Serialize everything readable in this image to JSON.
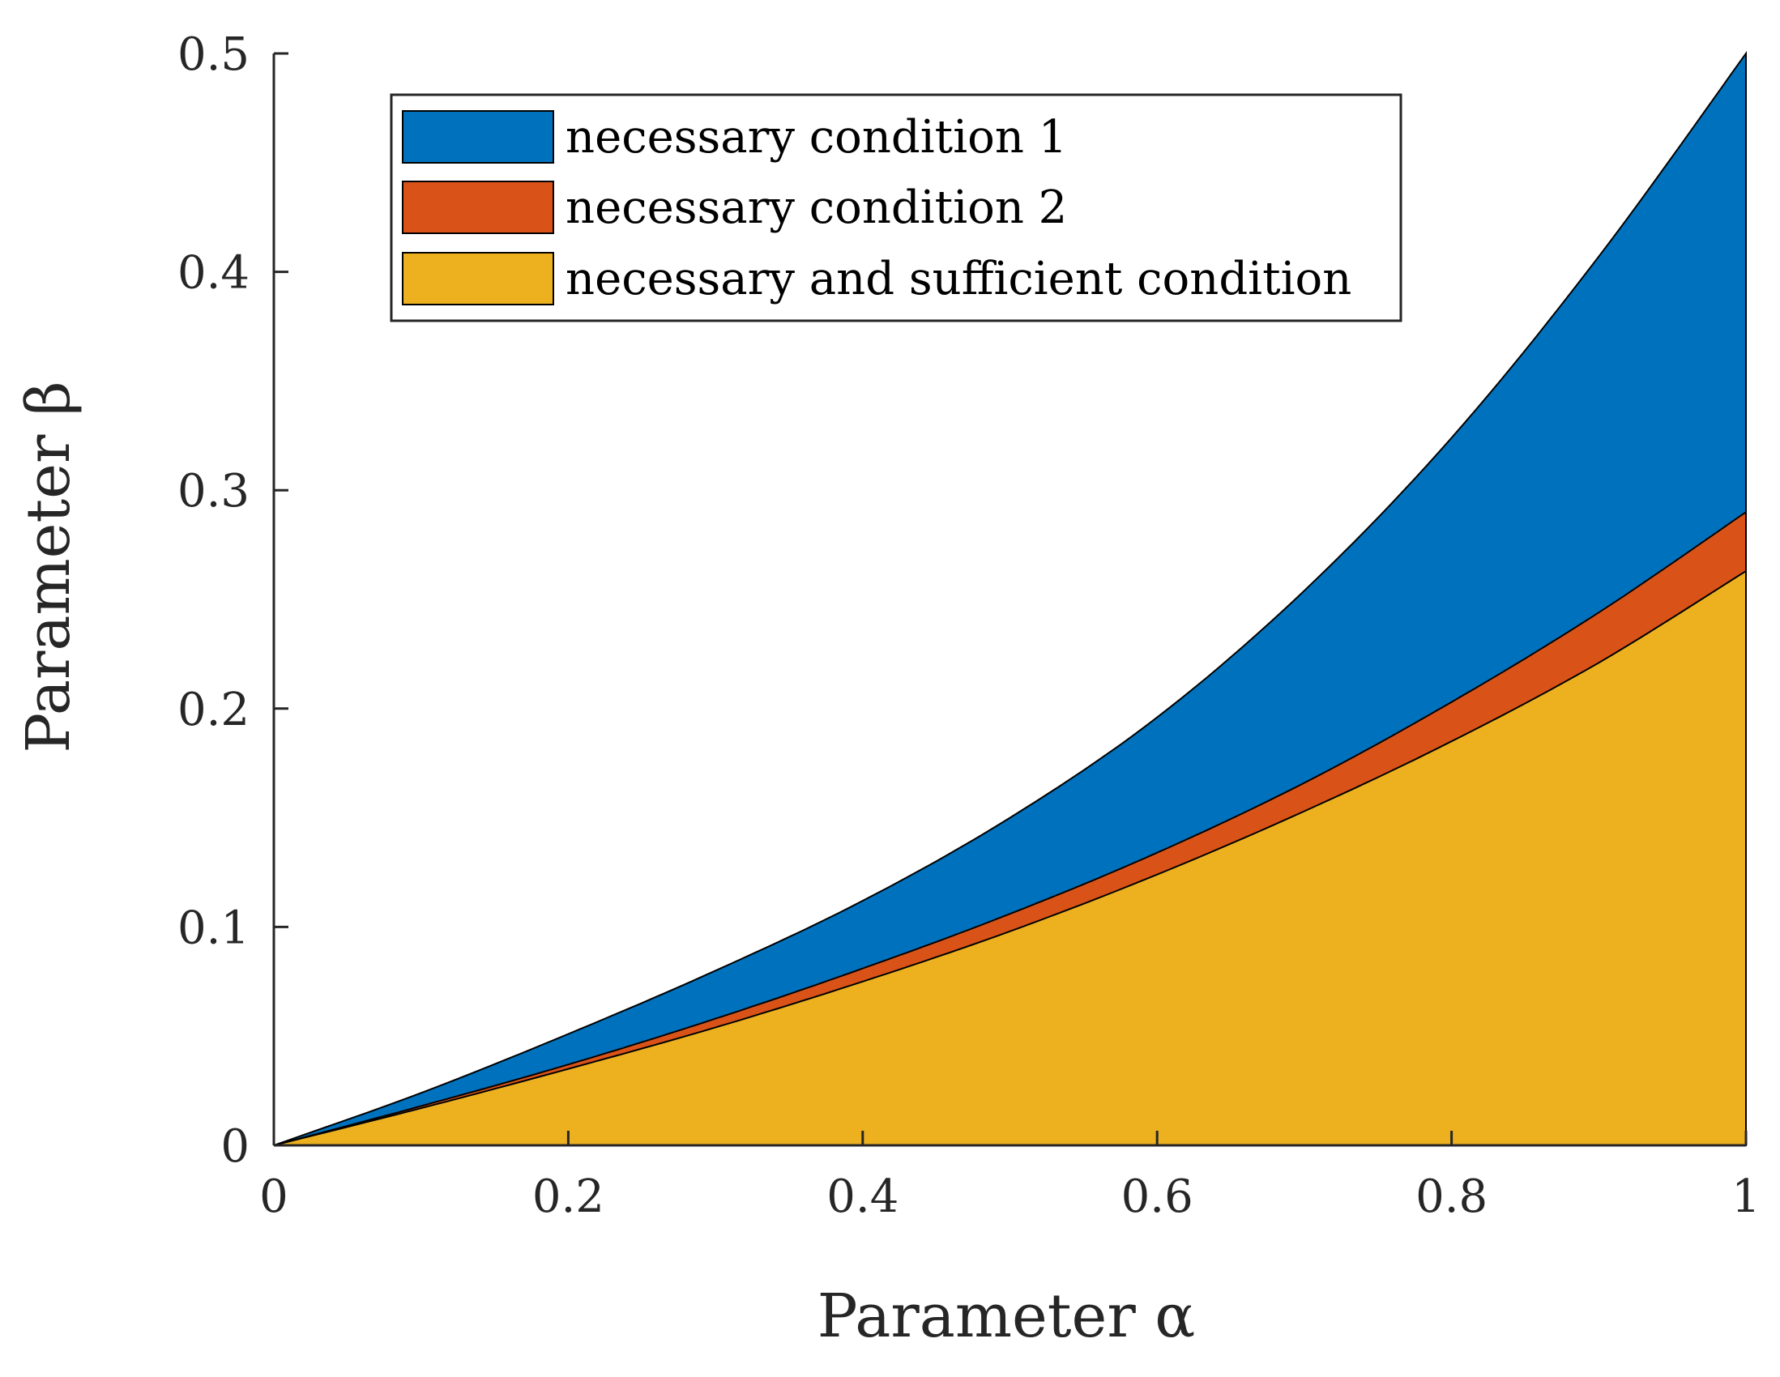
{
  "chart_data": {
    "type": "area",
    "title": "",
    "xlabel": "Parameter α",
    "ylabel": "Parameter β",
    "xlim": [
      0,
      1
    ],
    "ylim": [
      0,
      0.5
    ],
    "xticks": [
      0,
      0.2,
      0.4,
      0.6,
      0.8,
      1
    ],
    "yticks": [
      0,
      0.1,
      0.2,
      0.3,
      0.4,
      0.5
    ],
    "xtick_labels": [
      "0",
      "0.2",
      "0.4",
      "0.6",
      "0.8",
      "1"
    ],
    "ytick_labels": [
      "0",
      "0.1",
      "0.2",
      "0.3",
      "0.4",
      "0.5"
    ],
    "grid": false,
    "legend_position": "top-left inside",
    "x": [
      0,
      0.1,
      0.2,
      0.3,
      0.4,
      0.5,
      0.6,
      0.7,
      0.8,
      0.9,
      1.0
    ],
    "series": [
      {
        "name": "necessary condition 1",
        "color": "#0072BD",
        "values": [
          0,
          0.024,
          0.051,
          0.08,
          0.112,
          0.15,
          0.196,
          0.254,
          0.324,
          0.407,
          0.5
        ]
      },
      {
        "name": "necessary condition 2",
        "color": "#D95319",
        "values": [
          0,
          0.018,
          0.037,
          0.058,
          0.081,
          0.106,
          0.134,
          0.166,
          0.203,
          0.244,
          0.29
        ]
      },
      {
        "name": "necessary and sufficient condition",
        "color": "#EDB120",
        "values": [
          0,
          0.017,
          0.035,
          0.054,
          0.075,
          0.098,
          0.124,
          0.153,
          0.185,
          0.221,
          0.263
        ]
      }
    ]
  }
}
